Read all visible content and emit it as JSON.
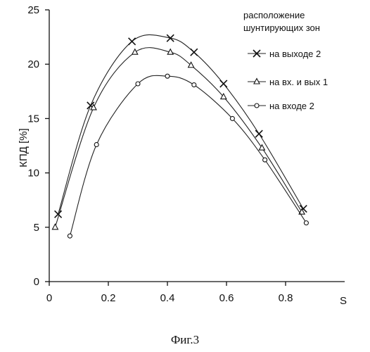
{
  "caption": "Фиг.3",
  "chart_data": {
    "type": "line",
    "title": "",
    "xlabel": "S",
    "ylabel": "КПД [%]",
    "xlim": [
      0,
      1.0
    ],
    "ylim": [
      0,
      25
    ],
    "x_ticks": [
      "0",
      "0.2",
      "0.4",
      "0.6",
      "0.8"
    ],
    "y_ticks": [
      "0",
      "5",
      "10",
      "15",
      "20",
      "25"
    ],
    "grid": false,
    "legend": {
      "title_line1": "расположение",
      "title_line2": "шунтирующих зон",
      "placement": "top-right"
    },
    "series": [
      {
        "name": "на выходе 2",
        "marker": "x",
        "x": [
          0.03,
          0.14,
          0.28,
          0.41,
          0.49,
          0.59,
          0.71,
          0.86
        ],
        "y": [
          6.2,
          16.2,
          22.1,
          22.4,
          21.1,
          18.2,
          13.6,
          6.7
        ]
      },
      {
        "name": "на вх. и вых 1",
        "marker": "triangle",
        "x": [
          0.02,
          0.15,
          0.29,
          0.41,
          0.48,
          0.59,
          0.72,
          0.855
        ],
        "y": [
          5.0,
          16.0,
          21.1,
          21.1,
          19.9,
          17.0,
          12.3,
          6.4
        ]
      },
      {
        "name": "на входе 2",
        "marker": "circle",
        "x": [
          0.07,
          0.16,
          0.3,
          0.4,
          0.49,
          0.62,
          0.73,
          0.87
        ],
        "y": [
          4.2,
          12.6,
          18.2,
          18.9,
          18.1,
          15.0,
          11.2,
          5.4
        ]
      }
    ]
  }
}
